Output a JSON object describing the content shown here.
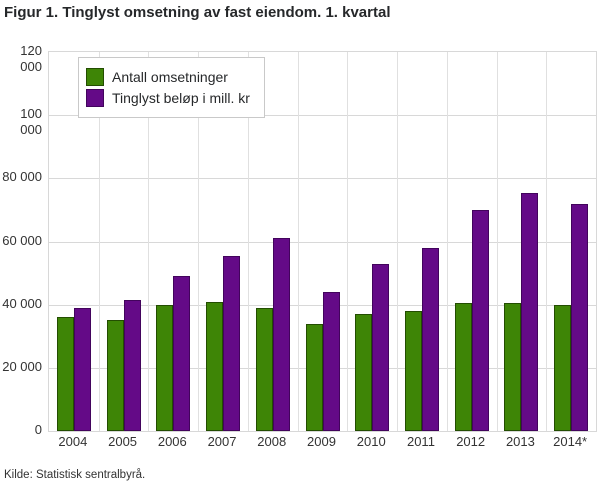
{
  "title": "Figur 1. Tinglyst omsetning av fast eiendom. 1. kvartal",
  "source": "Kilde: Statistisk sentralbyrå.",
  "colors": {
    "series_green": "#3e8506",
    "series_green_border": "#234d01",
    "series_purple": "#640a87",
    "series_purple_border": "#42045c",
    "gridline": "#d8d8d8",
    "axis_text": "#333333",
    "title_text": "#26282a"
  },
  "chart_data": {
    "type": "bar",
    "title": "Figur 1. Tinglyst omsetning av fast eiendom. 1. kvartal",
    "xlabel": "",
    "ylabel": "",
    "ylim": [
      0,
      120000
    ],
    "ytick_step": 20000,
    "ytick_labels": [
      "0",
      "20 000",
      "40 000",
      "60 000",
      "80 000",
      "100 000",
      "120 000"
    ],
    "grid": true,
    "legend_position": "top-left",
    "categories": [
      "2004",
      "2005",
      "2006",
      "2007",
      "2008",
      "2009",
      "2010",
      "2011",
      "2012",
      "2013",
      "2014*"
    ],
    "series": [
      {
        "name": "Antall omsetninger",
        "color": "#3e8506",
        "border_color": "#234d01",
        "values": [
          36000,
          35000,
          40000,
          41000,
          39000,
          34000,
          37000,
          38000,
          40500,
          40500,
          40000
        ]
      },
      {
        "name": "Tinglyst beløp i mill. kr",
        "color": "#640a87",
        "border_color": "#42045c",
        "values": [
          39000,
          41500,
          49000,
          55500,
          61000,
          44000,
          53000,
          58000,
          70000,
          75500,
          72000
        ]
      }
    ]
  }
}
